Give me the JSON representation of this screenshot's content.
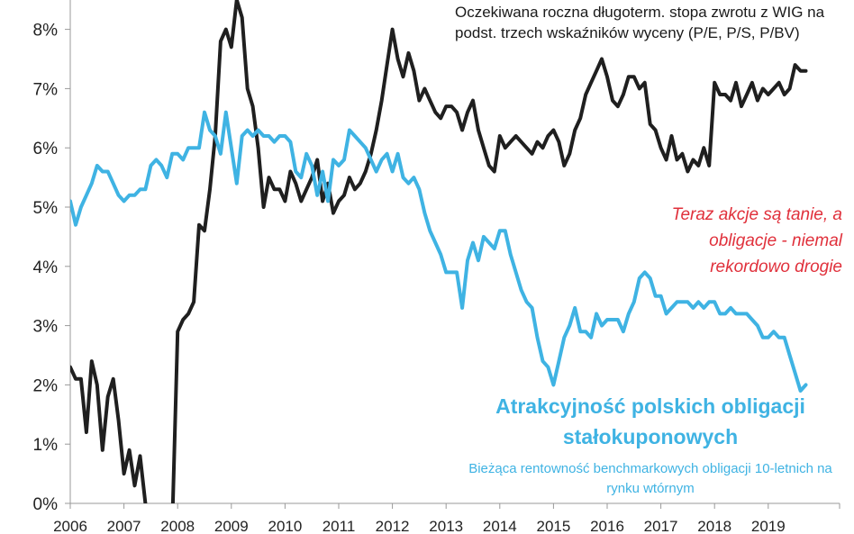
{
  "chart_data": {
    "type": "line",
    "title": "",
    "xlabel": "",
    "ylabel": "",
    "xlim": [
      2006.0,
      2020.0
    ],
    "ylim": [
      0,
      8.5
    ],
    "y_ticks": [
      0,
      1,
      2,
      3,
      4,
      5,
      6,
      7,
      8
    ],
    "y_tick_labels": [
      "0%",
      "1%",
      "2%",
      "3%",
      "4%",
      "5%",
      "6%",
      "7%",
      "8%"
    ],
    "x_ticks": [
      2006,
      2007,
      2008,
      2009,
      2010,
      2011,
      2012,
      2013,
      2014,
      2015,
      2016,
      2017,
      2018,
      2019
    ],
    "x_tick_labels": [
      "2006",
      "2007",
      "2008",
      "2009",
      "2010",
      "2011",
      "2012",
      "2013",
      "2014",
      "2015",
      "2016",
      "2017",
      "2018",
      "2019"
    ],
    "grid": false,
    "series": [
      {
        "color": "#1f1f1f",
        "x": [
          2006.0,
          2006.1,
          2006.2,
          2006.3,
          2006.4,
          2006.5,
          2006.6,
          2006.7,
          2006.8,
          2006.9,
          2007.0,
          2007.1,
          2007.2,
          2007.3,
          2007.4,
          2007.5,
          2007.6,
          2007.7,
          2007.8,
          2007.9,
          2008.0,
          2008.1,
          2008.2,
          2008.3,
          2008.4,
          2008.5,
          2008.6,
          2008.7,
          2008.8,
          2008.9,
          2009.0,
          2009.1,
          2009.2,
          2009.3,
          2009.4,
          2009.5,
          2009.6,
          2009.7,
          2009.8,
          2009.9,
          2010.0,
          2010.1,
          2010.2,
          2010.3,
          2010.4,
          2010.5,
          2010.6,
          2010.7,
          2010.8,
          2010.9,
          2011.0,
          2011.1,
          2011.2,
          2011.3,
          2011.4,
          2011.5,
          2011.6,
          2011.7,
          2011.8,
          2011.9,
          2012.0,
          2012.1,
          2012.2,
          2012.3,
          2012.4,
          2012.5,
          2012.6,
          2012.7,
          2012.8,
          2012.9,
          2013.0,
          2013.1,
          2013.2,
          2013.3,
          2013.4,
          2013.5,
          2013.6,
          2013.7,
          2013.8,
          2013.9,
          2014.0,
          2014.1,
          2014.2,
          2014.3,
          2014.4,
          2014.5,
          2014.6,
          2014.7,
          2014.8,
          2014.9,
          2015.0,
          2015.1,
          2015.2,
          2015.3,
          2015.4,
          2015.5,
          2015.6,
          2015.7,
          2015.8,
          2015.9,
          2016.0,
          2016.1,
          2016.2,
          2016.3,
          2016.4,
          2016.5,
          2016.6,
          2016.7,
          2016.8,
          2016.9,
          2017.0,
          2017.1,
          2017.2,
          2017.3,
          2017.4,
          2017.5,
          2017.6,
          2017.7,
          2017.8,
          2017.9,
          2018.0,
          2018.1,
          2018.2,
          2018.3,
          2018.4,
          2018.5,
          2018.6,
          2018.7,
          2018.8,
          2018.9,
          2019.0,
          2019.1,
          2019.2,
          2019.3,
          2019.4,
          2019.5,
          2019.6,
          2019.7
        ],
        "values": [
          2.3,
          2.1,
          2.1,
          1.2,
          2.4,
          2.0,
          0.9,
          1.8,
          2.1,
          1.4,
          0.5,
          0.9,
          0.3,
          0.8,
          0.0,
          -0.5,
          -0.6,
          -0.6,
          -0.3,
          -0.4,
          2.9,
          3.1,
          3.2,
          3.4,
          4.7,
          4.6,
          5.3,
          6.2,
          7.8,
          8.0,
          7.7,
          8.5,
          8.2,
          7.0,
          6.7,
          6.0,
          5.0,
          5.5,
          5.3,
          5.3,
          5.1,
          5.6,
          5.4,
          5.1,
          5.3,
          5.5,
          5.8,
          5.1,
          5.4,
          4.9,
          5.1,
          5.2,
          5.5,
          5.3,
          5.4,
          5.6,
          5.9,
          6.3,
          6.8,
          7.4,
          8.0,
          7.5,
          7.2,
          7.6,
          7.3,
          6.8,
          7.0,
          6.8,
          6.6,
          6.5,
          6.7,
          6.7,
          6.6,
          6.3,
          6.6,
          6.8,
          6.3,
          6.0,
          5.7,
          5.6,
          6.2,
          6.0,
          6.1,
          6.2,
          6.1,
          6.0,
          5.9,
          6.1,
          6.0,
          6.2,
          6.3,
          6.1,
          5.7,
          5.9,
          6.3,
          6.5,
          6.9,
          7.1,
          7.3,
          7.5,
          7.2,
          6.8,
          6.7,
          6.9,
          7.2,
          7.2,
          7.0,
          7.1,
          6.4,
          6.3,
          6.0,
          5.8,
          6.2,
          5.8,
          5.9,
          5.6,
          5.8,
          5.7,
          6.0,
          5.7,
          7.1,
          6.9,
          6.9,
          6.8,
          7.1,
          6.7,
          6.9,
          7.1,
          6.8,
          7.0,
          6.9,
          7.0,
          7.1,
          6.9,
          7.0,
          7.4,
          7.3,
          7.3
        ]
      },
      {
        "color": "#3fb3e3",
        "x": [
          2006.0,
          2006.1,
          2006.2,
          2006.3,
          2006.4,
          2006.5,
          2006.6,
          2006.7,
          2006.8,
          2006.9,
          2007.0,
          2007.1,
          2007.2,
          2007.3,
          2007.4,
          2007.5,
          2007.6,
          2007.7,
          2007.8,
          2007.9,
          2008.0,
          2008.1,
          2008.2,
          2008.3,
          2008.4,
          2008.5,
          2008.6,
          2008.7,
          2008.8,
          2008.9,
          2009.0,
          2009.1,
          2009.2,
          2009.3,
          2009.4,
          2009.5,
          2009.6,
          2009.7,
          2009.8,
          2009.9,
          2010.0,
          2010.1,
          2010.2,
          2010.3,
          2010.4,
          2010.5,
          2010.6,
          2010.7,
          2010.8,
          2010.9,
          2011.0,
          2011.1,
          2011.2,
          2011.3,
          2011.4,
          2011.5,
          2011.6,
          2011.7,
          2011.8,
          2011.9,
          2012.0,
          2012.1,
          2012.2,
          2012.3,
          2012.4,
          2012.5,
          2012.6,
          2012.7,
          2012.8,
          2012.9,
          2013.0,
          2013.1,
          2013.2,
          2013.3,
          2013.4,
          2013.5,
          2013.6,
          2013.7,
          2013.8,
          2013.9,
          2014.0,
          2014.1,
          2014.2,
          2014.3,
          2014.4,
          2014.5,
          2014.6,
          2014.7,
          2014.8,
          2014.9,
          2015.0,
          2015.1,
          2015.2,
          2015.3,
          2015.4,
          2015.5,
          2015.6,
          2015.7,
          2015.8,
          2015.9,
          2016.0,
          2016.1,
          2016.2,
          2016.3,
          2016.4,
          2016.5,
          2016.6,
          2016.7,
          2016.8,
          2016.9,
          2017.0,
          2017.1,
          2017.2,
          2017.3,
          2017.4,
          2017.5,
          2017.6,
          2017.7,
          2017.8,
          2017.9,
          2018.0,
          2018.1,
          2018.2,
          2018.3,
          2018.4,
          2018.5,
          2018.6,
          2018.7,
          2018.8,
          2018.9,
          2019.0,
          2019.1,
          2019.2,
          2019.3,
          2019.4,
          2019.5,
          2019.6,
          2019.7
        ],
        "values": [
          5.1,
          4.7,
          5.0,
          5.2,
          5.4,
          5.7,
          5.6,
          5.6,
          5.4,
          5.2,
          5.1,
          5.2,
          5.2,
          5.3,
          5.3,
          5.7,
          5.8,
          5.7,
          5.5,
          5.9,
          5.9,
          5.8,
          6.0,
          6.0,
          6.0,
          6.6,
          6.3,
          6.2,
          5.9,
          6.6,
          6.0,
          5.4,
          6.2,
          6.3,
          6.2,
          6.3,
          6.2,
          6.2,
          6.1,
          6.2,
          6.2,
          6.1,
          5.6,
          5.5,
          5.9,
          5.7,
          5.2,
          5.6,
          5.1,
          5.8,
          5.7,
          5.8,
          6.3,
          6.2,
          6.1,
          6.0,
          5.8,
          5.6,
          5.8,
          5.9,
          5.6,
          5.9,
          5.5,
          5.4,
          5.5,
          5.3,
          4.9,
          4.6,
          4.4,
          4.2,
          3.9,
          3.9,
          3.9,
          3.3,
          4.1,
          4.4,
          4.1,
          4.5,
          4.4,
          4.3,
          4.6,
          4.6,
          4.2,
          3.9,
          3.6,
          3.4,
          3.3,
          2.8,
          2.4,
          2.3,
          2.0,
          2.4,
          2.8,
          3.0,
          3.3,
          2.9,
          2.9,
          2.8,
          3.2,
          3.0,
          3.1,
          3.1,
          3.1,
          2.9,
          3.2,
          3.4,
          3.8,
          3.9,
          3.8,
          3.5,
          3.5,
          3.2,
          3.3,
          3.4,
          3.4,
          3.4,
          3.3,
          3.4,
          3.3,
          3.4,
          3.4,
          3.2,
          3.2,
          3.3,
          3.2,
          3.2,
          3.2,
          3.1,
          3.0,
          2.8,
          2.8,
          2.9,
          2.8,
          2.8,
          2.5,
          2.2,
          1.9,
          2.0
        ]
      }
    ]
  },
  "annotations": {
    "black_line_label": "Oczekiwana roczna długoterm. stopa zwrotu z WIG na podst. trzech wskaźników wyceny (P/E, P/S, P/BV)",
    "red_note": "Teraz akcje są tanie, a obligacje - niemal rekordowo drogie",
    "blue_line_title": "Atrakcyjność polskich obligacji stałokuponowych",
    "blue_line_subtitle": "Bieżąca rentowność benchmarkowych obligacji 10-letnich na rynku wtórnym"
  }
}
